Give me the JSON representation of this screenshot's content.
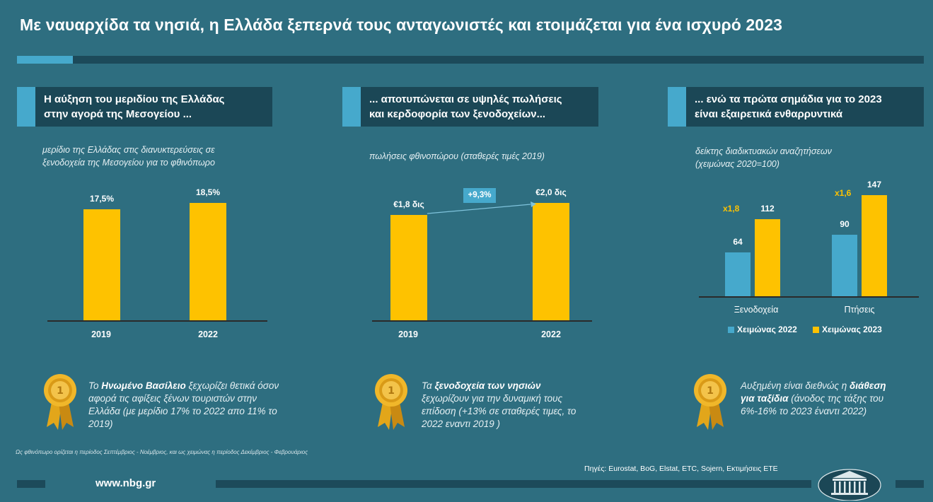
{
  "title": "Με ναυαρχίδα τα νησιά, η Ελλάδα ξεπερνά τους ανταγωνιστές και ετοιμάζεται για ένα ισχυρό 2023",
  "colors": {
    "background": "#2e6e80",
    "header_bg": "#1b4756",
    "accent_blue": "#46a9cc",
    "accent_yellow": "#fec200"
  },
  "panels": [
    {
      "header_line1": "Η αύξηση του μεριδίου της Ελλάδας",
      "header_line2": "στην αγορά της Μεσογείου ...",
      "subtitle_line1": "μερίδιο της Ελλάδας στις διανυκτερεύσεις σε",
      "subtitle_line2": "ξενοδοχεία της Μεσογείου για το φθινόπωρο",
      "note_pre": "Το ",
      "note_bold": "Ηνωμένο Βασίλειο",
      "note_post": " ξεχωρίζει θετικά όσον αφορά τις αφίξεις ξένων τουριστών στην Ελλάδα (με μερίδιο 17% το 2022 απο 11% το 2019)",
      "icon": "medal-icon"
    },
    {
      "header_line1": "... αποτυπώνεται σε υψηλές πωλήσεις",
      "header_line2": "και κερδοφορία των ξενοδοχείων...",
      "subtitle_line1": "πωλήσεις φθινοπώρου (σταθερές τιμές 2019)",
      "subtitle_line2": "",
      "growth_label": "+9,3%",
      "note_pre": "Τα ",
      "note_bold": "ξενοδοχεία των νησιών",
      "note_post": " ξεχωρίζουν για την δυναμική τους επίδοση (+13% σε σταθερές τιμες, το 2022 εναντι 2019 )",
      "icon": "medal-icon"
    },
    {
      "header_line1": "... ενώ τα πρώτα σημάδια για το 2023",
      "header_line2": "είναι εξαιρετικά ενθαρρυντικά",
      "subtitle_line1": "δείκτης διαδικτυακών αναζητήσεων",
      "subtitle_line2": "(χειμώνας 2020=100)",
      "note_pre": "Αυξημένη είναι διεθνώς η ",
      "note_bold": "διάθεση για ταξίδια",
      "note_post": " (άνοδος της τάξης του 6%-16% το 2023 έναντι 2022)",
      "icon": "medal-icon"
    }
  ],
  "chart_data": [
    {
      "type": "bar",
      "categories": [
        "2019",
        "2022"
      ],
      "values": [
        17.5,
        18.5
      ],
      "value_labels": [
        "17,5%",
        "18,5%"
      ],
      "title": "μερίδιο της Ελλάδας στις διανυκτερεύσεις σε ξενοδοχεία της Μεσογείου για το φθινόπωρο",
      "ylim": [
        0,
        20
      ]
    },
    {
      "type": "bar",
      "categories": [
        "2019",
        "2022"
      ],
      "values": [
        1.8,
        2.0
      ],
      "value_labels": [
        "€1,8 δις",
        "€2,0 δις"
      ],
      "annotation": "+9,3%",
      "title": "πωλήσεις φθινοπώρου (σταθερές τιμές 2019)",
      "ylim": [
        0,
        2.2
      ]
    },
    {
      "type": "bar",
      "categories": [
        "Ξενοδοχεία",
        "Πτήσεις"
      ],
      "series": [
        {
          "name": "Χειμώνας 2022",
          "values": [
            64,
            90
          ],
          "color": "#46a9cc"
        },
        {
          "name": "Χειμώνας 2023",
          "values": [
            112,
            147
          ],
          "color": "#fec200"
        }
      ],
      "multipliers": [
        "x1,8",
        "x1,6"
      ],
      "title": "δείκτης διαδικτυακών αναζητήσεων (χειμώνας 2020=100)",
      "ylim": [
        0,
        160
      ],
      "legend": "bottom"
    }
  ],
  "footnote": "Ως φθινόπωρο ορίζεται η περίοδος Σεπτέμβριος - Νοέμβριος, και ως χειμώνας η περίοδος Δεκέμβριος - Φεβρουάριος",
  "sources": "Πηγές: Eurostat, BoG, Elstat, ETC, Sojern, Εκτιμήσεις ΕΤΕ",
  "website": "www.nbg.gr",
  "logo_icon": "nbg-building-logo"
}
